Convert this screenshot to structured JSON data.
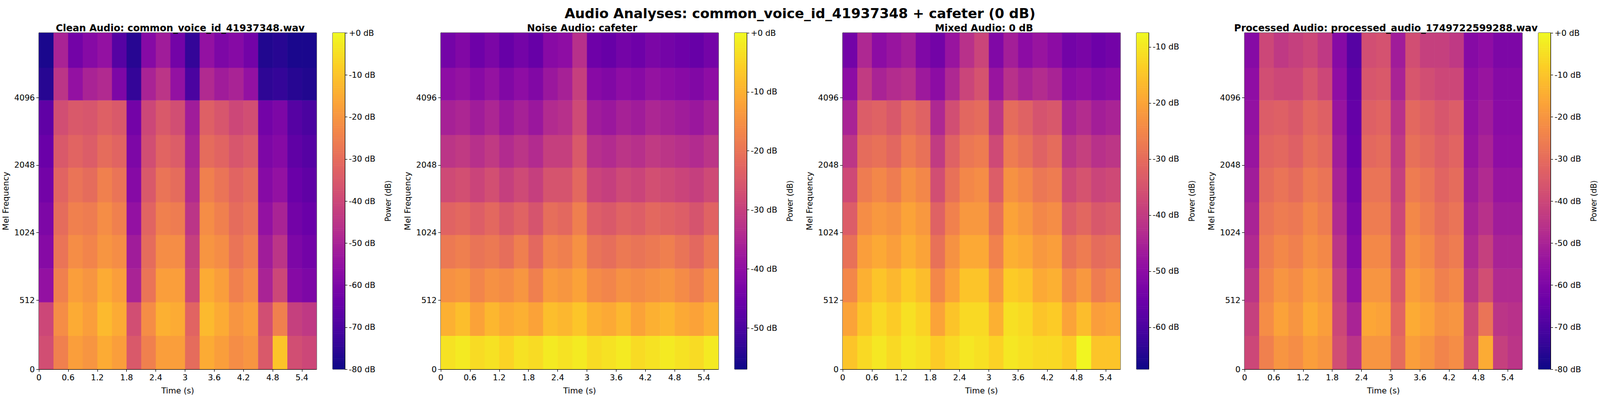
{
  "title": "Audio Analyses: common_voice_id_41937348 + cafeter (0 dB)",
  "chart_data": [
    {
      "type": "heatmap",
      "title": "Clean Audio: common_voice_id_41937348.wav",
      "x_label": "Time (s)",
      "y_label": "Mel Frequency",
      "xlim": [
        0,
        5.7
      ],
      "xticks": [
        0,
        0.6,
        1.2,
        1.8,
        2.4,
        3,
        3.6,
        4.2,
        4.8,
        5.4
      ],
      "ylim": [
        0,
        8000
      ],
      "yticks": [
        0,
        512,
        1024,
        2048,
        4096
      ],
      "time_edges": [
        0,
        0.3,
        0.6,
        0.9,
        1.2,
        1.5,
        1.8,
        2.1,
        2.4,
        2.7,
        3,
        3.3,
        3.6,
        3.9,
        4.2,
        4.5,
        4.8,
        5.1,
        5.4,
        5.7
      ],
      "freq_edges": [
        0,
        250,
        500,
        750,
        1000,
        1400,
        2000,
        2800,
        4000,
        5600,
        8000
      ],
      "cells": [
        [
          -38,
          -25,
          -18,
          -20,
          -15,
          -18,
          -35,
          -25,
          -18,
          -18,
          -30,
          -15,
          -18,
          -22,
          -20,
          -35,
          -10,
          -38,
          -40
        ],
        [
          -40,
          -22,
          -15,
          -18,
          -12,
          -15,
          -38,
          -22,
          -14,
          -15,
          -32,
          -12,
          -15,
          -20,
          -18,
          -38,
          -25,
          -42,
          -44
        ],
        [
          -55,
          -25,
          -18,
          -20,
          -15,
          -18,
          -50,
          -28,
          -18,
          -18,
          -40,
          -15,
          -18,
          -25,
          -22,
          -50,
          -40,
          -58,
          -60
        ],
        [
          -58,
          -28,
          -22,
          -24,
          -20,
          -22,
          -52,
          -30,
          -22,
          -22,
          -42,
          -20,
          -22,
          -28,
          -25,
          -52,
          -45,
          -60,
          -62
        ],
        [
          -60,
          -30,
          -25,
          -26,
          -22,
          -25,
          -55,
          -32,
          -25,
          -26,
          -45,
          -22,
          -25,
          -30,
          -28,
          -55,
          -50,
          -62,
          -64
        ],
        [
          -62,
          -32,
          -28,
          -30,
          -25,
          -28,
          -58,
          -35,
          -28,
          -30,
          -48,
          -25,
          -28,
          -32,
          -30,
          -58,
          -55,
          -64,
          -66
        ],
        [
          -64,
          -35,
          -32,
          -34,
          -30,
          -32,
          -60,
          -38,
          -32,
          -34,
          -50,
          -30,
          -32,
          -36,
          -34,
          -60,
          -58,
          -66,
          -68
        ],
        [
          -66,
          -38,
          -35,
          -36,
          -33,
          -35,
          -62,
          -40,
          -35,
          -38,
          -52,
          -33,
          -36,
          -40,
          -38,
          -62,
          -60,
          -68,
          -70
        ],
        [
          -76,
          -45,
          -55,
          -50,
          -48,
          -60,
          -74,
          -50,
          -45,
          -55,
          -70,
          -48,
          -52,
          -50,
          -55,
          -75,
          -74,
          -76,
          -77
        ],
        [
          -78,
          -50,
          -62,
          -58,
          -55,
          -68,
          -76,
          -58,
          -52,
          -62,
          -74,
          -55,
          -60,
          -58,
          -62,
          -77,
          -76,
          -78,
          -78
        ]
      ],
      "colorbar": {
        "label": "Power (dB)",
        "range": [
          -80,
          0
        ],
        "ticks": [
          {
            "value": 0,
            "label": "+0 dB"
          },
          {
            "value": -10,
            "label": "-10 dB"
          },
          {
            "value": -20,
            "label": "-20 dB"
          },
          {
            "value": -30,
            "label": "-30 dB"
          },
          {
            "value": -40,
            "label": "-40 dB"
          },
          {
            "value": -50,
            "label": "-50 dB"
          },
          {
            "value": -60,
            "label": "-60 dB"
          },
          {
            "value": -70,
            "label": "-70 dB"
          },
          {
            "value": -80,
            "label": "-80 dB"
          }
        ]
      }
    },
    {
      "type": "heatmap",
      "title": "Noise Audio: cafeter",
      "x_label": "Time (s)",
      "y_label": "Mel Frequency",
      "xlim": [
        0,
        5.7
      ],
      "xticks": [
        0,
        0.6,
        1.2,
        1.8,
        2.4,
        3,
        3.6,
        4.2,
        4.8,
        5.4
      ],
      "ylim": [
        0,
        8000
      ],
      "yticks": [
        0,
        512,
        1024,
        2048,
        4096
      ],
      "time_edges": [
        0,
        0.3,
        0.6,
        0.9,
        1.2,
        1.5,
        1.8,
        2.1,
        2.4,
        2.7,
        3,
        3.3,
        3.6,
        3.9,
        4.2,
        4.5,
        4.8,
        5.1,
        5.4,
        5.7
      ],
      "freq_edges": [
        0,
        250,
        500,
        750,
        1000,
        1400,
        2000,
        2800,
        4000,
        5600,
        8000
      ],
      "cells": [
        [
          -3,
          -2,
          -4,
          -3,
          -5,
          -3,
          -4,
          -2,
          -3,
          -2,
          -4,
          -3,
          -2,
          -4,
          -3,
          -2,
          -3,
          -4,
          -2
        ],
        [
          -10,
          -8,
          -12,
          -9,
          -11,
          -10,
          -12,
          -8,
          -9,
          -7,
          -10,
          -11,
          -9,
          -12,
          -10,
          -9,
          -11,
          -12,
          -10
        ],
        [
          -15,
          -14,
          -17,
          -15,
          -16,
          -14,
          -18,
          -13,
          -14,
          -12,
          -16,
          -17,
          -15,
          -16,
          -15,
          -14,
          -16,
          -18,
          -15
        ],
        [
          -19,
          -18,
          -20,
          -19,
          -21,
          -18,
          -22,
          -17,
          -18,
          -15,
          -20,
          -21,
          -19,
          -20,
          -19,
          -18,
          -20,
          -22,
          -19
        ],
        [
          -23,
          -22,
          -24,
          -22,
          -25,
          -23,
          -26,
          -21,
          -22,
          -18,
          -24,
          -25,
          -23,
          -24,
          -22,
          -23,
          -24,
          -26,
          -23
        ],
        [
          -28,
          -27,
          -29,
          -27,
          -30,
          -28,
          -30,
          -26,
          -26,
          -22,
          -29,
          -30,
          -28,
          -29,
          -27,
          -28,
          -29,
          -30,
          -28
        ],
        [
          -32,
          -31,
          -33,
          -31,
          -34,
          -32,
          -34,
          -30,
          -30,
          -25,
          -33,
          -34,
          -32,
          -33,
          -31,
          -32,
          -33,
          -34,
          -32
        ],
        [
          -36,
          -35,
          -37,
          -35,
          -38,
          -36,
          -38,
          -34,
          -33,
          -28,
          -37,
          -38,
          -36,
          -37,
          -35,
          -36,
          -37,
          -38,
          -36
        ],
        [
          -40,
          -39,
          -41,
          -39,
          -42,
          -40,
          -42,
          -38,
          -36,
          -30,
          -41,
          -42,
          -40,
          -41,
          -39,
          -40,
          -41,
          -42,
          -40
        ],
        [
          -44,
          -42,
          -45,
          -43,
          -46,
          -44,
          -46,
          -41,
          -40,
          -33,
          -45,
          -46,
          -44,
          -45,
          -43,
          -44,
          -45,
          -46,
          -44
        ]
      ],
      "colorbar": {
        "label": "Power (dB)",
        "range": [
          -57,
          0
        ],
        "ticks": [
          {
            "value": 0,
            "label": "+0 dB"
          },
          {
            "value": -10,
            "label": "-10 dB"
          },
          {
            "value": -20,
            "label": "-20 dB"
          },
          {
            "value": -30,
            "label": "-30 dB"
          },
          {
            "value": -40,
            "label": "-40 dB"
          },
          {
            "value": -50,
            "label": "-50 dB"
          }
        ]
      }
    },
    {
      "type": "heatmap",
      "title": "Mixed Audio: 0 dB",
      "x_label": "Time (s)",
      "y_label": "Mel Frequency",
      "xlim": [
        0,
        5.7
      ],
      "xticks": [
        0,
        0.6,
        1.2,
        1.8,
        2.4,
        3,
        3.6,
        4.2,
        4.8,
        5.4
      ],
      "ylim": [
        0,
        8000
      ],
      "yticks": [
        0,
        512,
        1024,
        2048,
        4096
      ],
      "time_edges": [
        0,
        0.3,
        0.6,
        0.9,
        1.2,
        1.5,
        1.8,
        2.1,
        2.4,
        2.7,
        3,
        3.3,
        3.6,
        3.9,
        4.2,
        4.5,
        4.8,
        5.1,
        5.4,
        5.7
      ],
      "freq_edges": [
        0,
        250,
        500,
        750,
        1000,
        1400,
        2000,
        2800,
        4000,
        5600,
        8000
      ],
      "cells": [
        [
          -15,
          -12,
          -10,
          -12,
          -10,
          -11,
          -14,
          -12,
          -10,
          -11,
          -13,
          -10,
          -11,
          -12,
          -12,
          -14,
          -8,
          -15,
          -15
        ],
        [
          -20,
          -15,
          -12,
          -14,
          -11,
          -13,
          -20,
          -15,
          -12,
          -12,
          -18,
          -11,
          -12,
          -15,
          -14,
          -20,
          -16,
          -21,
          -20
        ],
        [
          -25,
          -18,
          -15,
          -17,
          -14,
          -16,
          -25,
          -20,
          -15,
          -15,
          -22,
          -14,
          -15,
          -19,
          -18,
          -25,
          -22,
          -27,
          -25
        ],
        [
          -29,
          -21,
          -19,
          -21,
          -18,
          -20,
          -29,
          -23,
          -19,
          -19,
          -26,
          -18,
          -19,
          -22,
          -21,
          -29,
          -27,
          -30,
          -29
        ],
        [
          -33,
          -24,
          -22,
          -23,
          -20,
          -22,
          -32,
          -26,
          -22,
          -22,
          -29,
          -20,
          -22,
          -25,
          -24,
          -33,
          -31,
          -34,
          -33
        ],
        [
          -37,
          -27,
          -25,
          -27,
          -23,
          -25,
          -36,
          -29,
          -25,
          -24,
          -33,
          -23,
          -25,
          -28,
          -27,
          -37,
          -35,
          -38,
          -37
        ],
        [
          -41,
          -30,
          -29,
          -31,
          -27,
          -29,
          -40,
          -32,
          -28,
          -27,
          -37,
          -27,
          -29,
          -32,
          -30,
          -41,
          -39,
          -42,
          -41
        ],
        [
          -45,
          -33,
          -32,
          -34,
          -30,
          -32,
          -44,
          -36,
          -31,
          -30,
          -41,
          -30,
          -32,
          -35,
          -34,
          -45,
          -43,
          -46,
          -45
        ],
        [
          -50,
          -40,
          -45,
          -43,
          -42,
          -47,
          -50,
          -44,
          -38,
          -35,
          -48,
          -42,
          -45,
          -43,
          -45,
          -50,
          -49,
          -51,
          -50
        ],
        [
          -54,
          -44,
          -50,
          -48,
          -46,
          -52,
          -54,
          -48,
          -42,
          -38,
          -52,
          -46,
          -50,
          -48,
          -50,
          -54,
          -53,
          -55,
          -54
        ]
      ],
      "colorbar": {
        "label": "Power (dB)",
        "range": [
          -67.5,
          -7.5
        ],
        "ticks": [
          {
            "value": -10,
            "label": "-10 dB"
          },
          {
            "value": -20,
            "label": "-20 dB"
          },
          {
            "value": -30,
            "label": "-30 dB"
          },
          {
            "value": -40,
            "label": "-40 dB"
          },
          {
            "value": -50,
            "label": "-50 dB"
          },
          {
            "value": -60,
            "label": "-60 dB"
          }
        ]
      }
    },
    {
      "type": "heatmap",
      "title": "Processed Audio: processed_audio_1749722599288.wav",
      "x_label": "Time (s)",
      "y_label": "Mel Frequency",
      "xlim": [
        0,
        5.7
      ],
      "xticks": [
        0,
        0.6,
        1.2,
        1.8,
        2.4,
        3,
        3.6,
        4.2,
        4.8,
        5.4
      ],
      "ylim": [
        0,
        8000
      ],
      "yticks": [
        0,
        512,
        1024,
        2048,
        4096
      ],
      "time_edges": [
        0,
        0.3,
        0.6,
        0.9,
        1.2,
        1.5,
        1.8,
        2.1,
        2.4,
        2.7,
        3,
        3.3,
        3.6,
        3.9,
        4.2,
        4.5,
        4.8,
        5.1,
        5.4,
        5.7
      ],
      "freq_edges": [
        0,
        250,
        500,
        750,
        1000,
        1400,
        2000,
        2800,
        4000,
        5600,
        8000
      ],
      "cells": [
        [
          -40,
          -25,
          -20,
          -22,
          -18,
          -20,
          -38,
          -45,
          -20,
          -20,
          -30,
          -18,
          -20,
          -24,
          -22,
          -38,
          -15,
          -42,
          -45
        ],
        [
          -42,
          -22,
          -17,
          -20,
          -15,
          -18,
          -40,
          -50,
          -16,
          -17,
          -32,
          -15,
          -17,
          -21,
          -20,
          -40,
          -28,
          -45,
          -46
        ],
        [
          -45,
          -24,
          -20,
          -22,
          -18,
          -20,
          -42,
          -55,
          -20,
          -20,
          -35,
          -18,
          -20,
          -25,
          -23,
          -45,
          -38,
          -48,
          -48
        ],
        [
          -48,
          -26,
          -23,
          -25,
          -21,
          -23,
          -45,
          -58,
          -23,
          -23,
          -38,
          -21,
          -23,
          -28,
          -26,
          -48,
          -42,
          -50,
          -50
        ],
        [
          -50,
          -28,
          -26,
          -27,
          -23,
          -26,
          -48,
          -60,
          -26,
          -26,
          -40,
          -23,
          -26,
          -30,
          -28,
          -50,
          -46,
          -52,
          -52
        ],
        [
          -52,
          -30,
          -28,
          -30,
          -26,
          -28,
          -50,
          -62,
          -28,
          -28,
          -42,
          -26,
          -28,
          -32,
          -30,
          -52,
          -48,
          -54,
          -54
        ],
        [
          -54,
          -32,
          -31,
          -33,
          -29,
          -31,
          -52,
          -64,
          -31,
          -30,
          -44,
          -29,
          -31,
          -34,
          -32,
          -54,
          -50,
          -56,
          -56
        ],
        [
          -55,
          -34,
          -33,
          -35,
          -31,
          -33,
          -54,
          -65,
          -33,
          -32,
          -46,
          -31,
          -33,
          -36,
          -34,
          -55,
          -52,
          -57,
          -57
        ],
        [
          -56,
          -38,
          -40,
          -40,
          -36,
          -40,
          -56,
          -66,
          -36,
          -35,
          -50,
          -36,
          -38,
          -40,
          -40,
          -56,
          -54,
          -58,
          -58
        ],
        [
          -58,
          -40,
          -44,
          -42,
          -40,
          -44,
          -58,
          -68,
          -38,
          -37,
          -52,
          -38,
          -42,
          -42,
          -44,
          -58,
          -56,
          -60,
          -60
        ]
      ],
      "colorbar": {
        "label": "Power (dB)",
        "range": [
          -80,
          0
        ],
        "ticks": [
          {
            "value": 0,
            "label": "+0 dB"
          },
          {
            "value": -10,
            "label": "-10 dB"
          },
          {
            "value": -20,
            "label": "-20 dB"
          },
          {
            "value": -30,
            "label": "-30 dB"
          },
          {
            "value": -40,
            "label": "-40 dB"
          },
          {
            "value": -50,
            "label": "-50 dB"
          },
          {
            "value": -60,
            "label": "-60 dB"
          },
          {
            "value": -70,
            "label": "-70 dB"
          },
          {
            "value": -80,
            "label": "-80 dB"
          }
        ]
      }
    }
  ]
}
